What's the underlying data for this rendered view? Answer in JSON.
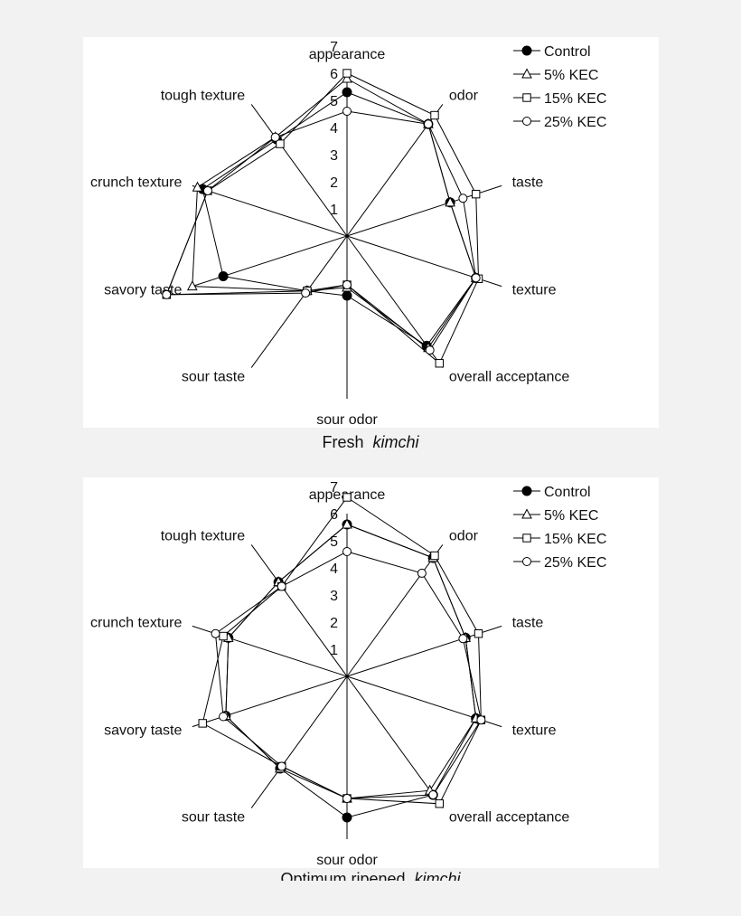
{
  "chart_data": [
    {
      "type": "radar",
      "title": "",
      "caption_prefix": "Fresh",
      "caption_italic": "kimchi",
      "axes": [
        "appearance",
        "odor",
        "taste",
        "texture",
        "overall acceptance",
        "sour odor",
        "sour taste",
        "savory taste",
        "crunch texture",
        "tough texture"
      ],
      "tick_labels": [
        "1",
        "2",
        "3",
        "4",
        "5",
        "6",
        "7"
      ],
      "range": [
        0,
        7
      ],
      "legend_position": "top-right",
      "series": [
        {
          "name": "Control",
          "marker": "filled-circle",
          "values": [
            5.3,
            5.1,
            4.0,
            5.0,
            5.0,
            2.2,
            2.5,
            4.8,
            5.6,
            4.4
          ]
        },
        {
          "name": "5% KEC",
          "marker": "triangle",
          "values": [
            5.8,
            5.1,
            4.0,
            5.0,
            5.1,
            1.9,
            2.5,
            6.0,
            5.8,
            4.5
          ]
        },
        {
          "name": "15% KEC",
          "marker": "square",
          "values": [
            6.0,
            5.5,
            5.0,
            5.1,
            5.8,
            1.8,
            2.5,
            7.0,
            5.4,
            4.2
          ]
        },
        {
          "name": "25% KEC",
          "marker": "open-circle",
          "values": [
            4.6,
            5.1,
            4.5,
            5.0,
            5.2,
            1.8,
            2.6,
            7.0,
            5.4,
            4.5
          ]
        }
      ]
    },
    {
      "type": "radar",
      "title": "",
      "caption_prefix": "Optimum ripened",
      "caption_italic": "kimchi",
      "axes": [
        "appearance",
        "odor",
        "taste",
        "texture",
        "overall acceptance",
        "sour odor",
        "sour taste",
        "savory taste",
        "crunch texture",
        "tough texture"
      ],
      "tick_labels": [
        "1",
        "2",
        "3",
        "4",
        "5",
        "6",
        "7"
      ],
      "range": [
        0,
        7
      ],
      "legend_position": "top-right",
      "series": [
        {
          "name": "Control",
          "marker": "filled-circle",
          "values": [
            5.6,
            5.4,
            4.6,
            5.0,
            5.4,
            5.2,
            4.2,
            4.7,
            4.6,
            4.3
          ]
        },
        {
          "name": "5% KEC",
          "marker": "triangle",
          "values": [
            5.6,
            5.4,
            4.6,
            5.0,
            5.2,
            4.5,
            4.2,
            4.7,
            4.6,
            4.3
          ]
        },
        {
          "name": "15% KEC",
          "marker": "square",
          "values": [
            6.6,
            5.5,
            5.1,
            5.2,
            5.8,
            4.5,
            4.1,
            5.6,
            4.8,
            4.1
          ]
        },
        {
          "name": "25% KEC",
          "marker": "open-circle",
          "values": [
            4.6,
            4.7,
            4.5,
            5.2,
            5.4,
            4.5,
            4.1,
            4.8,
            5.1,
            4.1
          ]
        }
      ]
    }
  ]
}
